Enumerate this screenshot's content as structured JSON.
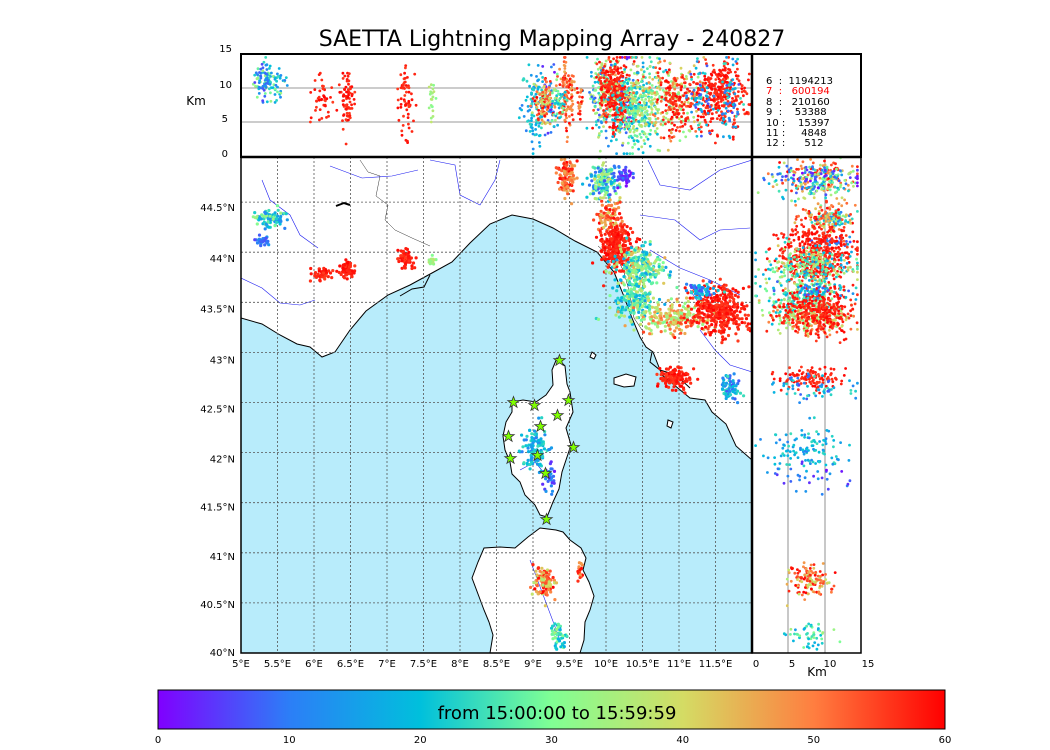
{
  "chart_data": {
    "type": "scatter",
    "title": "SAETTA Lightning Mapping Array - 240827",
    "colorbar_label": "from 15:00:00 to 15:59:59",
    "colorbar_ticks": [
      "0",
      "10",
      "20",
      "30",
      "40",
      "50",
      "60"
    ],
    "colorbar_range": [
      0,
      60
    ],
    "colormap": "rainbow",
    "map": {
      "lon_range": [
        5,
        12
      ],
      "lat_range": [
        40,
        44.95
      ],
      "lon_ticks": [
        "5°E",
        "5.5°E",
        "6°E",
        "6.5°E",
        "7°E",
        "7.5°E",
        "8°E",
        "8.5°E",
        "9°E",
        "9.5°E",
        "10°E",
        "10.5°E",
        "11°E",
        "11.5°E"
      ],
      "lat_ticks": [
        "40°N",
        "40.5°N",
        "41°N",
        "41.5°N",
        "42°N",
        "42.5°N",
        "43°N",
        "43.5°N",
        "44°N",
        "44.5°N"
      ],
      "grid": true,
      "sea_color": "#b8ecfb",
      "station_marker_color": "#7fff00",
      "stations": [
        {
          "lon": 9.35,
          "lat": 43.0
        },
        {
          "lon": 8.72,
          "lat": 42.56
        },
        {
          "lon": 9.0,
          "lat": 42.55
        },
        {
          "lon": 9.45,
          "lat": 42.59
        },
        {
          "lon": 9.3,
          "lat": 42.44
        },
        {
          "lon": 9.08,
          "lat": 42.33
        },
        {
          "lon": 8.65,
          "lat": 42.23
        },
        {
          "lon": 9.53,
          "lat": 42.12
        },
        {
          "lon": 8.68,
          "lat": 42.01
        },
        {
          "lon": 9.04,
          "lat": 42.03
        },
        {
          "lon": 9.15,
          "lat": 41.86
        },
        {
          "lon": 9.15,
          "lat": 41.38
        }
      ]
    },
    "altitude_panel": {
      "ylabel": "Km",
      "ticks": [
        "0",
        "5",
        "10",
        "15"
      ],
      "range": [
        0,
        15
      ],
      "reference_lines": [
        5,
        10
      ]
    },
    "side_panel": {
      "xlabel": "Km",
      "ticks": [
        "0",
        "5",
        "10",
        "15"
      ],
      "range": [
        0,
        15
      ],
      "reference_lines": [
        5,
        10
      ]
    },
    "station_counts": [
      {
        "label": "6  :  1194213",
        "color": "#000000"
      },
      {
        "label": "7  :   600194",
        "color": "#ff0000"
      },
      {
        "label": "8  :   210160",
        "color": "#000000"
      },
      {
        "label": "9  :    53388",
        "color": "#000000"
      },
      {
        "label": "10 :    15397",
        "color": "#000000"
      },
      {
        "label": "11 :     4848",
        "color": "#000000"
      },
      {
        "label": "12 :      512",
        "color": "#000000"
      }
    ],
    "clusters": [
      {
        "lon": 5.4,
        "lat": 44.33,
        "slon": 0.1,
        "slat": 0.04,
        "n": 90,
        "tmin": 10,
        "tmax": 35,
        "zc": 11,
        "zs": 1.5
      },
      {
        "lon": 5.3,
        "lat": 44.1,
        "slon": 0.05,
        "slat": 0.03,
        "n": 30,
        "tmin": 5,
        "tmax": 15,
        "zc": 11,
        "zs": 1.5
      },
      {
        "lon": 6.1,
        "lat": 43.78,
        "slon": 0.07,
        "slat": 0.03,
        "n": 40,
        "tmin": 55,
        "tmax": 60,
        "zc": 8,
        "zs": 2
      },
      {
        "lon": 6.45,
        "lat": 43.83,
        "slon": 0.05,
        "slat": 0.04,
        "n": 70,
        "tmin": 55,
        "tmax": 60,
        "zc": 8,
        "zs": 2
      },
      {
        "lon": 7.25,
        "lat": 43.93,
        "slon": 0.05,
        "slat": 0.05,
        "n": 60,
        "tmin": 55,
        "tmax": 60,
        "zc": 8,
        "zs": 3
      },
      {
        "lon": 7.62,
        "lat": 43.92,
        "slon": 0.02,
        "slat": 0.02,
        "n": 20,
        "tmin": 30,
        "tmax": 38,
        "zc": 8,
        "zs": 2
      },
      {
        "lon": 9.45,
        "lat": 44.75,
        "slon": 0.06,
        "slat": 0.09,
        "n": 110,
        "tmin": 45,
        "tmax": 60,
        "zc": 9,
        "zs": 2.5
      },
      {
        "lon": 9.95,
        "lat": 44.7,
        "slon": 0.1,
        "slat": 0.1,
        "n": 160,
        "tmin": 5,
        "tmax": 40,
        "zc": 9,
        "zs": 3
      },
      {
        "lon": 10.25,
        "lat": 44.75,
        "slon": 0.05,
        "slat": 0.05,
        "n": 40,
        "tmin": 0,
        "tmax": 10,
        "zc": 9,
        "zs": 3
      },
      {
        "lon": 10.05,
        "lat": 44.35,
        "slon": 0.08,
        "slat": 0.08,
        "n": 90,
        "tmin": 40,
        "tmax": 60,
        "zc": 10,
        "zs": 2
      },
      {
        "lon": 10.15,
        "lat": 44.05,
        "slon": 0.12,
        "slat": 0.12,
        "n": 280,
        "tmin": 55,
        "tmax": 60,
        "zc": 9,
        "zs": 2.5
      },
      {
        "lon": 10.45,
        "lat": 43.85,
        "slon": 0.17,
        "slat": 0.1,
        "n": 240,
        "tmin": 15,
        "tmax": 45,
        "zc": 8,
        "zs": 3
      },
      {
        "lon": 10.4,
        "lat": 43.5,
        "slon": 0.15,
        "slat": 0.1,
        "n": 180,
        "tmin": 15,
        "tmax": 38,
        "zc": 7,
        "zs": 3
      },
      {
        "lon": 10.9,
        "lat": 43.35,
        "slon": 0.25,
        "slat": 0.08,
        "n": 200,
        "tmin": 30,
        "tmax": 55,
        "zc": 8,
        "zs": 3
      },
      {
        "lon": 11.55,
        "lat": 43.42,
        "slon": 0.2,
        "slat": 0.12,
        "n": 340,
        "tmin": 55,
        "tmax": 60,
        "zc": 9,
        "zs": 2.5
      },
      {
        "lon": 11.3,
        "lat": 43.62,
        "slon": 0.1,
        "slat": 0.04,
        "n": 60,
        "tmin": 5,
        "tmax": 25,
        "zc": 9,
        "zs": 3
      },
      {
        "lon": 10.95,
        "lat": 42.75,
        "slon": 0.12,
        "slat": 0.05,
        "n": 110,
        "tmin": 55,
        "tmax": 60,
        "zc": 8,
        "zs": 2
      },
      {
        "lon": 11.7,
        "lat": 42.65,
        "slon": 0.08,
        "slat": 0.08,
        "n": 60,
        "tmin": 5,
        "tmax": 25,
        "zc": 8,
        "zs": 3
      },
      {
        "lon": 9.02,
        "lat": 42.05,
        "slon": 0.1,
        "slat": 0.12,
        "n": 110,
        "tmin": 10,
        "tmax": 25,
        "zc": 8,
        "zs": 3
      },
      {
        "lon": 9.2,
        "lat": 41.75,
        "slon": 0.04,
        "slat": 0.1,
        "n": 30,
        "tmin": 0,
        "tmax": 15,
        "zc": 8,
        "zs": 3
      },
      {
        "lon": 9.15,
        "lat": 40.72,
        "slon": 0.07,
        "slat": 0.09,
        "n": 110,
        "tmin": 35,
        "tmax": 60,
        "zc": 8,
        "zs": 1.5
      },
      {
        "lon": 9.65,
        "lat": 40.82,
        "slon": 0.02,
        "slat": 0.05,
        "n": 20,
        "tmin": 45,
        "tmax": 60,
        "zc": 8,
        "zs": 1.5
      },
      {
        "lon": 9.35,
        "lat": 40.18,
        "slon": 0.05,
        "slat": 0.07,
        "n": 50,
        "tmin": 15,
        "tmax": 35,
        "zc": 8,
        "zs": 1.5
      }
    ]
  }
}
